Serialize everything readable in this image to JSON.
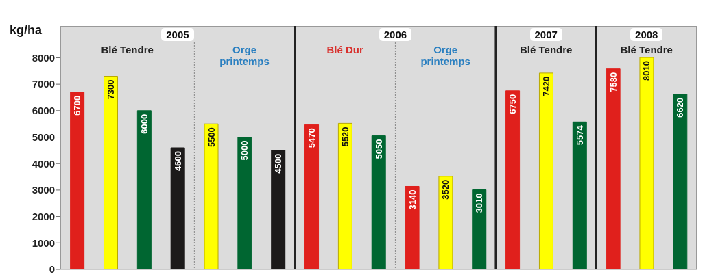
{
  "chart_data": {
    "type": "bar",
    "ylabel": "kg/ha",
    "categories": [
      null,
      null,
      null,
      null,
      null,
      null,
      null,
      null,
      null,
      null,
      null,
      null,
      null,
      null,
      null,
      null,
      null,
      null,
      null
    ],
    "values": [
      6700,
      7300,
      6000,
      4600,
      5500,
      5000,
      4500,
      5470,
      5520,
      5050,
      3140,
      3520,
      3010,
      6750,
      7420,
      5574,
      7580,
      8010,
      6620
    ],
    "colors": [
      "#e0201c",
      "#ffff00",
      "#006631",
      "#1c1a1a",
      "#ffff00",
      "#006631",
      "#1c1a1a",
      "#e0201c",
      "#ffff00",
      "#006631",
      "#e0201c",
      "#ffff00",
      "#006631",
      "#e0201c",
      "#ffff00",
      "#006631",
      "#e0201c",
      "#ffff00",
      "#006631"
    ],
    "data_labels": true,
    "ylim": [
      0,
      9200
    ],
    "yticks": [
      0,
      1000,
      2000,
      3000,
      4000,
      5000,
      6000,
      7000,
      8000
    ],
    "annotations": [
      "2005",
      "Blé Tendre",
      "Orge printemps",
      "2006",
      "Blé Dur",
      "Orge printemps",
      "2007",
      "Blé Tendre",
      "2008",
      "Blé Tendre"
    ]
  }
}
